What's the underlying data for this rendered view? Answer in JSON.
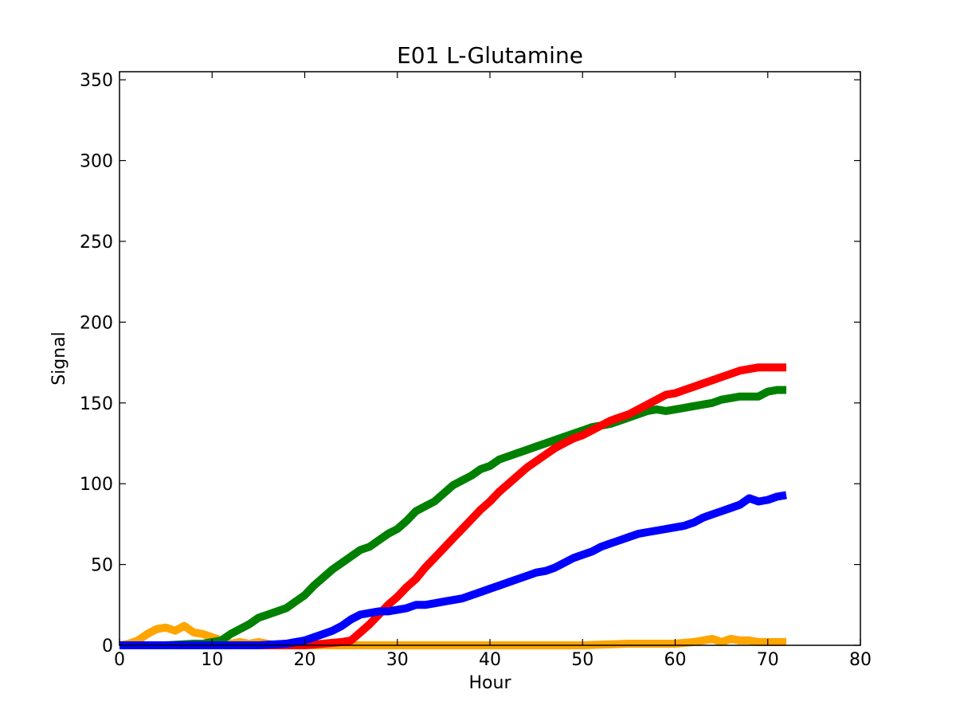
{
  "chart_data": {
    "type": "line",
    "title": "E01 L-Glutamine",
    "xlabel": "Hour",
    "ylabel": "Signal",
    "xlim": [
      0,
      80
    ],
    "ylim": [
      0,
      355
    ],
    "xticks": [
      0,
      10,
      20,
      30,
      40,
      50,
      60,
      70,
      80
    ],
    "yticks": [
      0,
      50,
      100,
      150,
      200,
      250,
      300,
      350
    ],
    "grid": false,
    "legend": "none",
    "series": [
      {
        "color": "#ffa500",
        "x": [
          0,
          1,
          2,
          3,
          4,
          5,
          6,
          7,
          8,
          9,
          10,
          11,
          12,
          13,
          14,
          15,
          16,
          17,
          18,
          20,
          25,
          30,
          40,
          50,
          55,
          58,
          60,
          62,
          63,
          64,
          65,
          66,
          67,
          68,
          69,
          70,
          71,
          72
        ],
        "y": [
          0,
          1,
          3,
          7,
          10,
          11,
          9,
          12,
          8,
          7,
          5,
          3,
          1,
          2,
          1,
          2,
          1,
          0,
          0,
          0,
          0,
          0,
          0,
          0,
          1,
          1,
          1,
          2,
          3,
          4,
          2,
          4,
          3,
          3,
          2,
          2,
          2,
          2
        ]
      },
      {
        "color": "#008000",
        "x": [
          0,
          5,
          8,
          9,
          10,
          11,
          12,
          13,
          14,
          15,
          16,
          18,
          19,
          20,
          21,
          22,
          23,
          24,
          25,
          26,
          27,
          28,
          29,
          30,
          31,
          32,
          33,
          34,
          35,
          36,
          37,
          38,
          39,
          40,
          41,
          42,
          43,
          44,
          45,
          46,
          47,
          48,
          49,
          50,
          51,
          52,
          53,
          54,
          55,
          56,
          57,
          58,
          59,
          60,
          61,
          62,
          63,
          64,
          65,
          66,
          67,
          68,
          69,
          70,
          71,
          72
        ],
        "y": [
          0,
          0,
          1,
          1,
          2,
          3,
          7,
          10,
          13,
          17,
          19,
          23,
          27,
          31,
          37,
          42,
          47,
          51,
          55,
          59,
          61,
          65,
          69,
          72,
          77,
          83,
          86,
          89,
          94,
          99,
          102,
          105,
          109,
          111,
          115,
          117,
          119,
          121,
          123,
          125,
          127,
          129,
          131,
          133,
          135,
          136,
          137,
          139,
          141,
          143,
          145,
          146,
          145,
          146,
          147,
          148,
          149,
          150,
          152,
          153,
          154,
          154,
          154,
          157,
          158,
          158
        ]
      },
      {
        "color": "#ff0000",
        "x": [
          0,
          20,
          22,
          24,
          25,
          26,
          27,
          28,
          29,
          30,
          31,
          32,
          33,
          34,
          35,
          36,
          37,
          38,
          39,
          40,
          41,
          42,
          43,
          44,
          45,
          46,
          47,
          48,
          49,
          50,
          51,
          52,
          53,
          54,
          55,
          56,
          57,
          58,
          59,
          60,
          61,
          62,
          63,
          64,
          65,
          66,
          67,
          68,
          69,
          70,
          71,
          72
        ],
        "y": [
          0,
          0,
          1,
          2,
          3,
          8,
          13,
          19,
          25,
          30,
          36,
          41,
          48,
          54,
          60,
          66,
          72,
          78,
          84,
          89,
          95,
          100,
          105,
          110,
          114,
          118,
          122,
          125,
          128,
          130,
          133,
          136,
          139,
          141,
          143,
          146,
          149,
          152,
          155,
          156,
          158,
          160,
          162,
          164,
          166,
          168,
          170,
          171,
          172,
          172,
          172,
          172
        ]
      },
      {
        "color": "#0000ff",
        "x": [
          0,
          5,
          10,
          15,
          18,
          19,
          20,
          21,
          22,
          23,
          24,
          25,
          26,
          27,
          28,
          29,
          30,
          31,
          32,
          33,
          34,
          35,
          36,
          37,
          38,
          39,
          40,
          41,
          42,
          43,
          44,
          45,
          46,
          47,
          48,
          49,
          50,
          51,
          52,
          53,
          54,
          55,
          56,
          57,
          58,
          59,
          60,
          61,
          62,
          63,
          64,
          65,
          66,
          67,
          68,
          69,
          70,
          71,
          72
        ],
        "y": [
          0,
          0,
          0,
          0,
          1,
          2,
          3,
          5,
          7,
          9,
          12,
          16,
          19,
          20,
          21,
          21,
          22,
          23,
          25,
          25,
          26,
          27,
          28,
          29,
          31,
          33,
          35,
          37,
          39,
          41,
          43,
          45,
          46,
          48,
          51,
          54,
          56,
          58,
          61,
          63,
          65,
          67,
          69,
          70,
          71,
          72,
          73,
          74,
          76,
          79,
          81,
          83,
          85,
          87,
          91,
          89,
          90,
          92,
          93
        ]
      }
    ]
  }
}
